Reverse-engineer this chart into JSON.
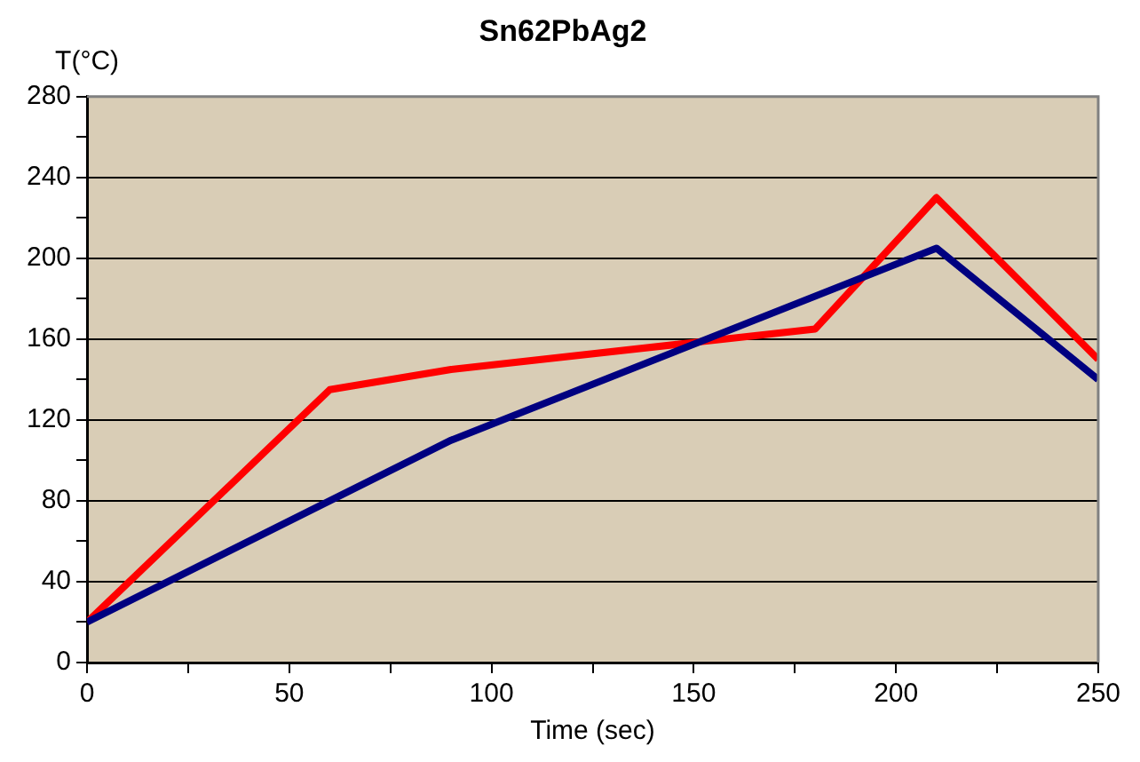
{
  "chart_data": {
    "type": "line",
    "title": "Sn62PbAg2",
    "xlabel": "Time (sec)",
    "ylabel": "T(°C)",
    "series": [
      {
        "x": [
          0,
          60,
          90,
          210,
          250
        ],
        "values": [
          20,
          80,
          110,
          205,
          140
        ],
        "color": "#000080"
      },
      {
        "x": [
          0,
          60,
          90,
          180,
          210,
          250
        ],
        "values": [
          20,
          135,
          145,
          165,
          230,
          150
        ],
        "color": "#ff0000"
      }
    ],
    "xlim": [
      0,
      250
    ],
    "xticks": [
      0,
      {
        "value": 25,
        "label": null
      },
      50,
      {
        "value": 75,
        "label": null
      },
      100,
      {
        "value": 125,
        "label": null
      },
      150,
      {
        "value": 175,
        "label": null
      },
      200,
      {
        "value": 225,
        "label": null
      },
      250
    ],
    "ylim": [
      0,
      280
    ],
    "yticks": [
      0,
      {
        "value": 20,
        "label": null
      },
      40,
      {
        "value": 60,
        "label": null
      },
      80,
      {
        "value": 100,
        "label": null
      },
      120,
      {
        "value": 140,
        "label": null
      },
      160,
      {
        "value": 180,
        "label": null
      },
      200,
      {
        "value": 220,
        "label": null
      },
      240,
      {
        "value": 260,
        "label": null
      },
      280
    ],
    "grid": "y",
    "legend": false,
    "marker": "none",
    "line_style": "solid"
  }
}
